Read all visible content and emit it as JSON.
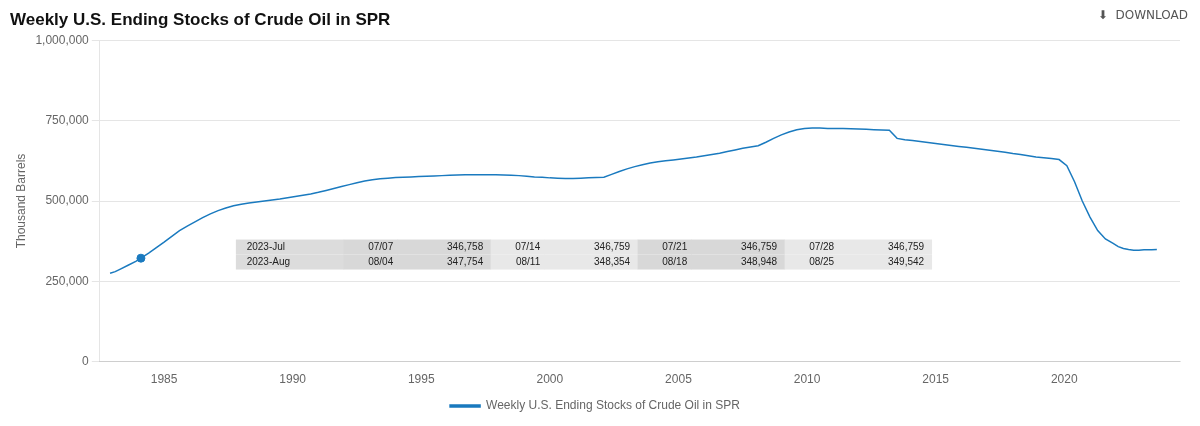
{
  "chart_data": {
    "type": "line",
    "title": "Weekly U.S. Ending Stocks of Crude Oil in SPR",
    "y_label": "Thousand Barrels",
    "annotations": [
      "⬇  DOWNLOAD"
    ],
    "table": [
      [
        "2023-Jul",
        "07/07",
        "346,758",
        "07/14",
        "346,759",
        "07/21",
        "346,759",
        "07/28",
        "346,759"
      ],
      [
        "2023-Aug",
        "08/04",
        "347,754",
        "08/11",
        "348,354",
        "08/18",
        "348,948",
        "08/25",
        "349,542"
      ]
    ],
    "x": [
      1982.9,
      1983.1,
      1983.3,
      1983.6,
      1983.9,
      1984.1,
      1984.4,
      1984.7,
      1985.0,
      1985.3,
      1985.6,
      1985.9,
      1986.2,
      1986.5,
      1986.8,
      1987.1,
      1987.4,
      1987.7,
      1988.0,
      1988.3,
      1988.6,
      1988.9,
      1989.2,
      1989.5,
      1989.8,
      1990.1,
      1990.4,
      1990.7,
      1991.0,
      1991.3,
      1991.6,
      1991.9,
      1992.2,
      1992.5,
      1992.8,
      1993.1,
      1993.4,
      1993.7,
      1994.0,
      1994.3,
      1994.6,
      1994.9,
      1995.2,
      1995.5,
      1995.8,
      1996.1,
      1996.4,
      1996.7,
      1997.0,
      1997.3,
      1997.6,
      1997.9,
      1998.2,
      1998.5,
      1998.8,
      1999.1,
      1999.4,
      1999.7,
      2000.0,
      2000.3,
      2000.6,
      2000.9,
      2001.2,
      2001.5,
      2001.8,
      2002.1,
      2002.4,
      2002.7,
      2003.0,
      2003.3,
      2003.6,
      2003.9,
      2004.2,
      2004.5,
      2004.8,
      2005.1,
      2005.4,
      2005.7,
      2006.0,
      2006.3,
      2006.6,
      2006.9,
      2007.2,
      2007.5,
      2007.8,
      2008.1,
      2008.4,
      2008.7,
      2009.0,
      2009.3,
      2009.6,
      2009.9,
      2010.2,
      2010.5,
      2010.8,
      2011.1,
      2011.4,
      2011.7,
      2012.0,
      2012.3,
      2012.6,
      2012.9,
      2013.2,
      2013.5,
      2013.8,
      2014.1,
      2014.4,
      2014.7,
      2015.0,
      2015.3,
      2015.6,
      2015.9,
      2016.2,
      2016.5,
      2016.8,
      2017.1,
      2017.4,
      2017.7,
      2018.0,
      2018.3,
      2018.6,
      2018.9,
      2019.2,
      2019.5,
      2019.8,
      2020.1,
      2020.4,
      2020.7,
      2021.0,
      2021.3,
      2021.6,
      2021.9,
      2022.1,
      2022.3,
      2022.5,
      2022.7,
      2022.9,
      2023.1,
      2023.4,
      2023.6
    ],
    "series": [
      {
        "name": "Weekly U.S. Ending Stocks of Crude Oil in SPR",
        "color": "#1a7abf",
        "values": [
          275000,
          280000,
          288000,
          300000,
          312000,
          322000,
          338000,
          355000,
          372000,
          390000,
          408000,
          422000,
          435000,
          448000,
          460000,
          470000,
          478000,
          485000,
          490000,
          494000,
          497000,
          500000,
          503000,
          506000,
          510000,
          514000,
          518000,
          522000,
          527000,
          533000,
          539000,
          545000,
          551000,
          557000,
          562000,
          566000,
          569000,
          571000,
          573000,
          574000,
          575000,
          576000,
          577000,
          578000,
          579000,
          580000,
          581000,
          582000,
          582000,
          582000,
          582000,
          582000,
          581000,
          580000,
          579000,
          577000,
          575000,
          574000,
          572000,
          571000,
          570000,
          570000,
          571000,
          572000,
          573000,
          574000,
          583000,
          592000,
          600000,
          607000,
          613000,
          618000,
          622000,
          625000,
          628000,
          631000,
          634000,
          637000,
          641000,
          645000,
          649000,
          654000,
          659000,
          664000,
          668000,
          672000,
          683000,
          695000,
          706000,
          715000,
          722000,
          726000,
          727000,
          727000,
          726000,
          726000,
          726000,
          725000,
          724000,
          723000,
          722000,
          721000,
          720000,
          695000,
          691000,
          688000,
          685000,
          682000,
          679000,
          676000,
          673000,
          670000,
          667000,
          664000,
          661000,
          658000,
          655000,
          652000,
          648000,
          645000,
          641000,
          637000,
          635000,
          632000,
          629000,
          610000,
          560000,
          500000,
          450000,
          408000,
          382000,
          368000,
          358000,
          352000,
          349000,
          347000,
          347000,
          348000,
          348000,
          349000
        ]
      }
    ],
    "highlight": {
      "x": 1984.1,
      "y": 322000,
      "color": "#1a7abf"
    },
    "xlim": [
      1982.5,
      2024.5
    ],
    "xticks": [
      1985,
      1990,
      1995,
      2000,
      2005,
      2010,
      2015,
      2020
    ],
    "ylim": [
      0,
      1000000
    ],
    "yticks": [
      0,
      {
        "value": 250000,
        "label": "250,000"
      },
      {
        "value": 500000,
        "label": "500,000"
      },
      {
        "value": 750000,
        "label": "750,000"
      },
      {
        "value": 1000000,
        "label": "1,000,000"
      }
    ],
    "grid": "y",
    "legend": "bottom"
  }
}
